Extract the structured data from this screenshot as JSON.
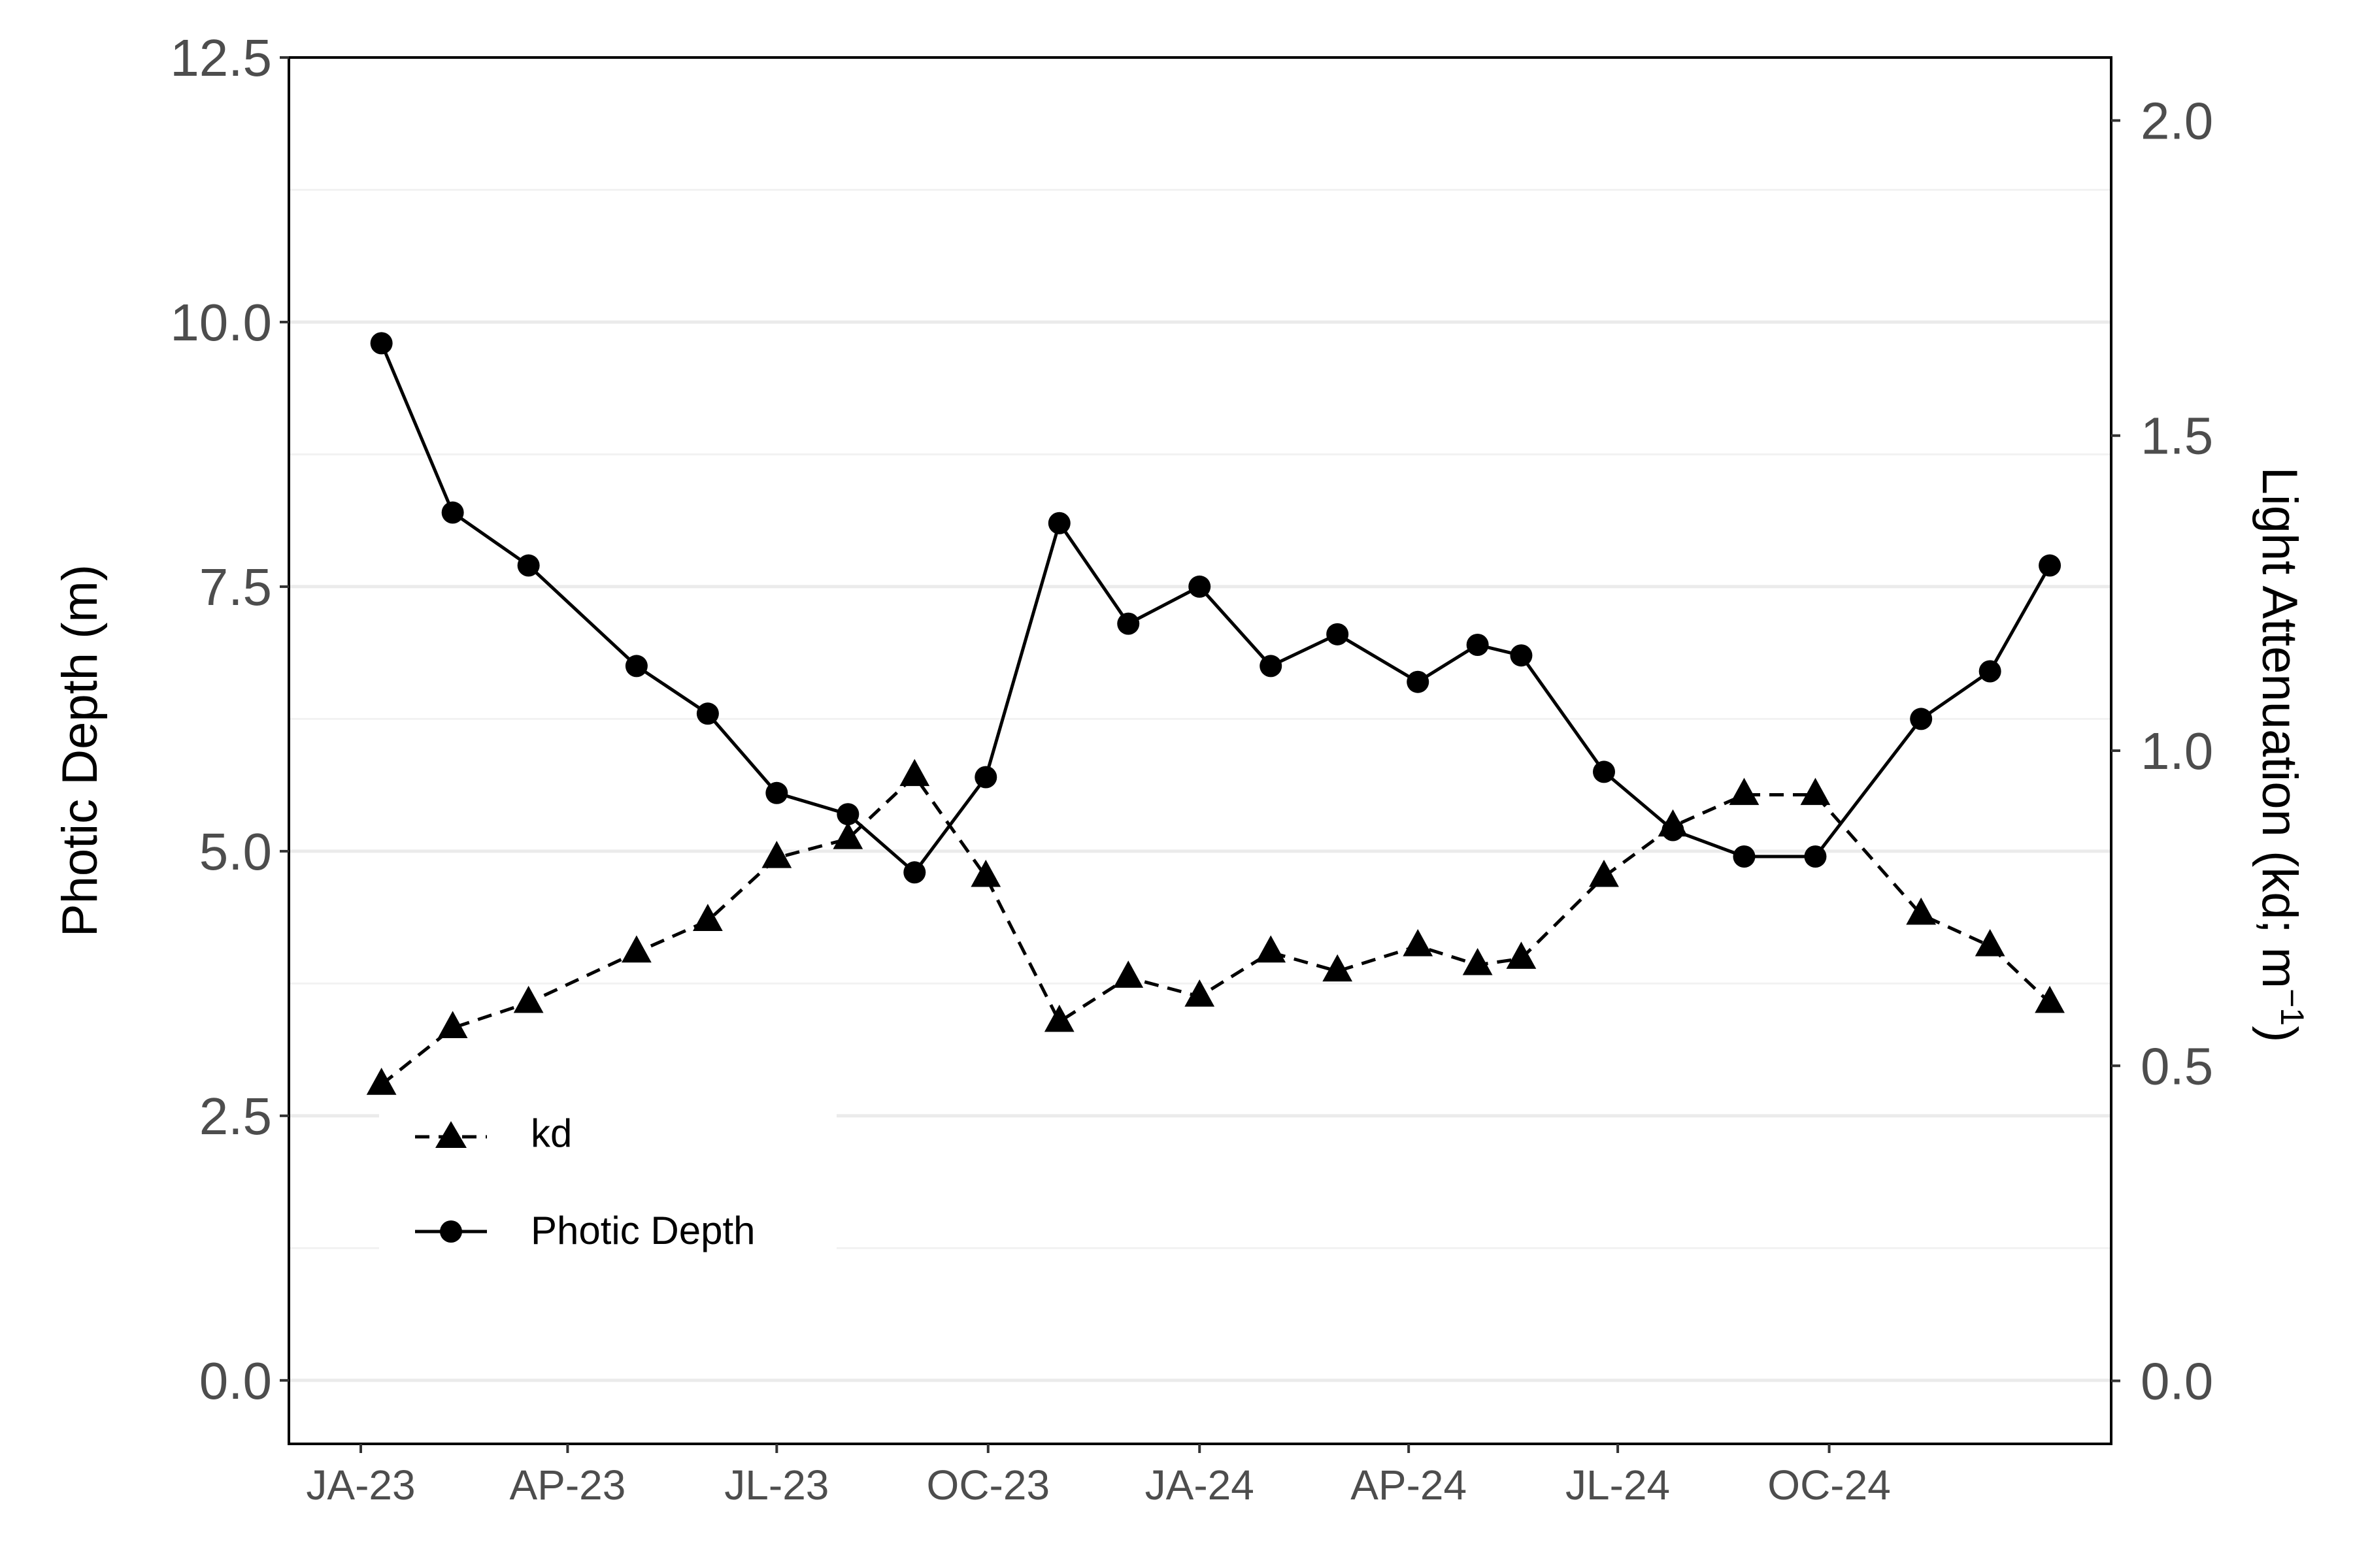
{
  "chart_data": {
    "type": "line",
    "x_tick_labels": [
      "JA-23",
      "AP-23",
      "JL-23",
      "OC-23",
      "JA-24",
      "AP-24",
      "JL-24",
      "OC-24"
    ],
    "x_range": [
      "2023-01",
      "2025-01"
    ],
    "y_left": {
      "label": "Photic Depth (m)",
      "range": [
        -0.6,
        12.5
      ],
      "ticks": [
        "0.0",
        "2.5",
        "5.0",
        "7.5",
        "10.0",
        "12.5"
      ]
    },
    "y_right": {
      "label_main": "Light Attenuation (kd; m",
      "label_sup": "−1",
      "label_end": ")",
      "range": [
        -0.1,
        2.1
      ],
      "ticks": [
        "0.0",
        "0.5",
        "1.0",
        "1.5",
        "2.0"
      ]
    },
    "grid": true,
    "legend": {
      "position": "bottom-left",
      "entries": [
        "kd",
        "Photic Depth"
      ]
    },
    "series": [
      {
        "name": "kd",
        "axis": "right",
        "style": "dashed",
        "marker": "triangle",
        "color": "#000000",
        "points": [
          [
            "2023-01-10",
            0.47
          ],
          [
            "2023-02-10",
            0.56
          ],
          [
            "2023-03-15",
            0.6
          ],
          [
            "2023-05-01",
            0.68
          ],
          [
            "2023-06-01",
            0.73
          ],
          [
            "2023-07-01",
            0.83
          ],
          [
            "2023-08-01",
            0.86
          ],
          [
            "2023-08-30",
            0.96
          ],
          [
            "2023-09-30",
            0.8
          ],
          [
            "2023-11-01",
            0.57
          ],
          [
            "2023-12-01",
            0.64
          ],
          [
            "2024-01-01",
            0.61
          ],
          [
            "2024-02-01",
            0.68
          ],
          [
            "2024-03-01",
            0.65
          ],
          [
            "2024-04-05",
            0.69
          ],
          [
            "2024-05-01",
            0.66
          ],
          [
            "2024-05-20",
            0.67
          ],
          [
            "2024-06-25",
            0.8
          ],
          [
            "2024-07-25",
            0.88
          ],
          [
            "2024-08-25",
            0.93
          ],
          [
            "2024-09-25",
            0.93
          ],
          [
            "2024-11-10",
            0.74
          ],
          [
            "2024-12-10",
            0.69
          ],
          [
            "2025-01-05",
            0.6
          ]
        ]
      },
      {
        "name": "Photic Depth",
        "axis": "left",
        "style": "solid",
        "marker": "circle",
        "color": "#000000",
        "points": [
          [
            "2023-01-10",
            9.8
          ],
          [
            "2023-02-10",
            8.2
          ],
          [
            "2023-03-15",
            7.7
          ],
          [
            "2023-05-01",
            6.75
          ],
          [
            "2023-06-01",
            6.3
          ],
          [
            "2023-07-01",
            5.55
          ],
          [
            "2023-08-01",
            5.35
          ],
          [
            "2023-08-30",
            4.8
          ],
          [
            "2023-09-30",
            5.7
          ],
          [
            "2023-11-01",
            8.1
          ],
          [
            "2023-12-01",
            7.15
          ],
          [
            "2024-01-01",
            7.5
          ],
          [
            "2024-02-01",
            6.75
          ],
          [
            "2024-03-01",
            7.05
          ],
          [
            "2024-04-05",
            6.6
          ],
          [
            "2024-05-01",
            6.95
          ],
          [
            "2024-05-20",
            6.85
          ],
          [
            "2024-06-25",
            5.75
          ],
          [
            "2024-07-25",
            5.2
          ],
          [
            "2024-08-25",
            4.95
          ],
          [
            "2024-09-25",
            4.95
          ],
          [
            "2024-11-10",
            6.25
          ],
          [
            "2024-12-10",
            6.7
          ],
          [
            "2025-01-05",
            7.7
          ]
        ]
      }
    ]
  }
}
